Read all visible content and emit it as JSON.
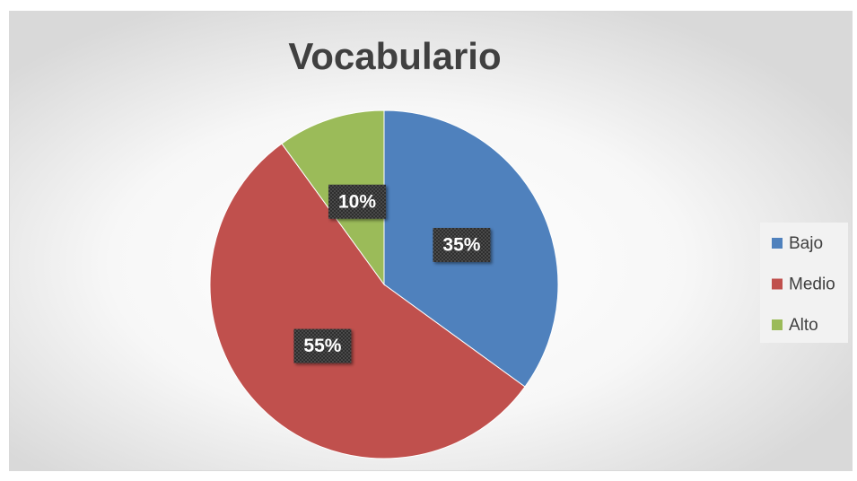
{
  "chart_data": {
    "type": "pie",
    "title": "Vocabulario",
    "categories": [
      "Bajo",
      "Medio",
      "Alto"
    ],
    "values": [
      35,
      55,
      10
    ],
    "value_labels": [
      "35%",
      "55%",
      "10%"
    ],
    "colors": [
      "#4f81bd",
      "#c0504d",
      "#9bbb59"
    ],
    "legend": "right"
  }
}
